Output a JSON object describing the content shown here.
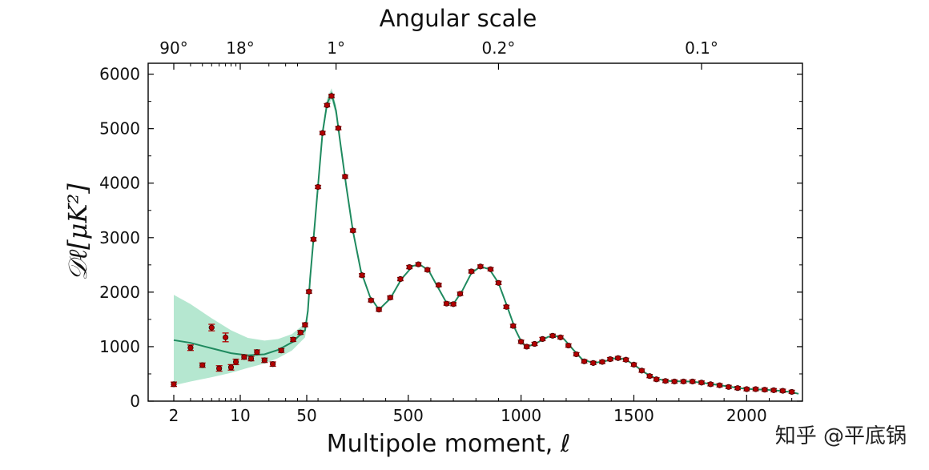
{
  "chart_data": {
    "type": "scatter",
    "title": "Angular scale",
    "xlabel": "Multipole moment, ℓ",
    "ylabel": "𝒟ℓ[μK²]",
    "ylim": [
      0,
      6200
    ],
    "x_scale": "log-linear hybrid (log for ℓ < 50, linear for ℓ ≥ 50)",
    "x_tick_labels": [
      2,
      10,
      50,
      500,
      1000,
      1500,
      2000
    ],
    "y_tick_labels": [
      0,
      1000,
      2000,
      3000,
      4000,
      5000,
      6000
    ],
    "top_axis_labels": [
      {
        "label": "90°",
        "ell": 2
      },
      {
        "label": "18°",
        "ell": 10
      },
      {
        "label": "1°",
        "ell": 180
      },
      {
        "label": "0.2°",
        "ell": 900
      },
      {
        "label": "0.1°",
        "ell": 1800
      }
    ],
    "series": [
      {
        "kind": "data-points",
        "color": "#b30000",
        "points": [
          [
            2,
            310,
            40
          ],
          [
            3,
            980,
            50
          ],
          [
            4,
            660,
            40
          ],
          [
            5,
            1350,
            60
          ],
          [
            6,
            600,
            50
          ],
          [
            7,
            1170,
            80
          ],
          [
            8,
            620,
            50
          ],
          [
            9,
            720,
            50
          ],
          [
            11,
            810,
            40
          ],
          [
            13,
            780,
            40
          ],
          [
            15,
            900,
            40
          ],
          [
            18,
            750,
            40
          ],
          [
            22,
            680,
            40
          ],
          [
            27,
            930,
            35
          ],
          [
            36,
            1130,
            35
          ],
          [
            43,
            1260,
            35
          ],
          [
            48,
            1400,
            35
          ],
          [
            60,
            2010,
            30
          ],
          [
            80,
            2970,
            30
          ],
          [
            100,
            3930,
            30
          ],
          [
            120,
            4920,
            30
          ],
          [
            140,
            5430,
            30
          ],
          [
            160,
            5600,
            30
          ],
          [
            190,
            5010,
            30
          ],
          [
            220,
            4120,
            30
          ],
          [
            255,
            3130,
            30
          ],
          [
            295,
            2310,
            30
          ],
          [
            335,
            1850,
            30
          ],
          [
            370,
            1680,
            30
          ],
          [
            420,
            1900,
            30
          ],
          [
            465,
            2240,
            30
          ],
          [
            505,
            2460,
            30
          ],
          [
            545,
            2510,
            30
          ],
          [
            585,
            2410,
            30
          ],
          [
            635,
            2130,
            30
          ],
          [
            670,
            1790,
            30
          ],
          [
            700,
            1780,
            30
          ],
          [
            730,
            1970,
            30
          ],
          [
            780,
            2380,
            30
          ],
          [
            820,
            2470,
            30
          ],
          [
            865,
            2420,
            30
          ],
          [
            900,
            2170,
            30
          ],
          [
            935,
            1730,
            30
          ],
          [
            965,
            1380,
            30
          ],
          [
            1000,
            1090,
            30
          ],
          [
            1025,
            1000,
            30
          ],
          [
            1060,
            1050,
            30
          ],
          [
            1095,
            1140,
            30
          ],
          [
            1140,
            1200,
            30
          ],
          [
            1175,
            1170,
            30
          ],
          [
            1210,
            1020,
            30
          ],
          [
            1245,
            860,
            30
          ],
          [
            1280,
            730,
            30
          ],
          [
            1320,
            700,
            30
          ],
          [
            1360,
            720,
            30
          ],
          [
            1395,
            770,
            30
          ],
          [
            1430,
            790,
            30
          ],
          [
            1465,
            760,
            30
          ],
          [
            1500,
            670,
            30
          ],
          [
            1535,
            560,
            30
          ],
          [
            1570,
            460,
            30
          ],
          [
            1600,
            400,
            30
          ],
          [
            1640,
            370,
            30
          ],
          [
            1680,
            360,
            30
          ],
          [
            1720,
            360,
            30
          ],
          [
            1760,
            360,
            30
          ],
          [
            1800,
            340,
            30
          ],
          [
            1840,
            310,
            30
          ],
          [
            1880,
            290,
            30
          ],
          [
            1920,
            260,
            30
          ],
          [
            1960,
            240,
            30
          ],
          [
            2000,
            220,
            30
          ],
          [
            2040,
            220,
            30
          ],
          [
            2080,
            210,
            30
          ],
          [
            2120,
            200,
            30
          ],
          [
            2160,
            190,
            30
          ],
          [
            2200,
            170,
            30
          ]
        ]
      },
      {
        "kind": "model-curve",
        "color": "#1f8a5f",
        "points": [
          [
            2,
            1120
          ],
          [
            3,
            1070
          ],
          [
            5,
            970
          ],
          [
            8,
            880
          ],
          [
            12,
            840
          ],
          [
            18,
            860
          ],
          [
            25,
            940
          ],
          [
            35,
            1080
          ],
          [
            48,
            1300
          ],
          [
            55,
            1650
          ],
          [
            65,
            2250
          ],
          [
            80,
            2980
          ],
          [
            100,
            3950
          ],
          [
            120,
            4920
          ],
          [
            140,
            5460
          ],
          [
            160,
            5640
          ],
          [
            180,
            5330
          ],
          [
            200,
            4700
          ],
          [
            225,
            3950
          ],
          [
            255,
            3120
          ],
          [
            290,
            2390
          ],
          [
            330,
            1920
          ],
          [
            370,
            1680
          ],
          [
            420,
            1880
          ],
          [
            470,
            2240
          ],
          [
            520,
            2480
          ],
          [
            550,
            2510
          ],
          [
            590,
            2400
          ],
          [
            630,
            2100
          ],
          [
            670,
            1800
          ],
          [
            700,
            1780
          ],
          [
            740,
            2030
          ],
          [
            780,
            2350
          ],
          [
            820,
            2470
          ],
          [
            860,
            2420
          ],
          [
            900,
            2170
          ],
          [
            940,
            1720
          ],
          [
            975,
            1310
          ],
          [
            1005,
            1060
          ],
          [
            1030,
            1000
          ],
          [
            1070,
            1070
          ],
          [
            1120,
            1180
          ],
          [
            1150,
            1200
          ],
          [
            1190,
            1140
          ],
          [
            1230,
            950
          ],
          [
            1270,
            770
          ],
          [
            1320,
            700
          ],
          [
            1370,
            730
          ],
          [
            1420,
            790
          ],
          [
            1460,
            770
          ],
          [
            1500,
            670
          ],
          [
            1550,
            520
          ],
          [
            1600,
            410
          ],
          [
            1650,
            370
          ],
          [
            1700,
            365
          ],
          [
            1750,
            360
          ],
          [
            1800,
            340
          ],
          [
            1850,
            310
          ],
          [
            1900,
            280
          ],
          [
            1950,
            250
          ],
          [
            2000,
            225
          ],
          [
            2050,
            215
          ],
          [
            2100,
            205
          ],
          [
            2150,
            190
          ],
          [
            2200,
            165
          ],
          [
            2230,
            135
          ]
        ]
      },
      {
        "kind": "cosmic-variance-band",
        "color": "#a8e3c8",
        "points": [
          [
            2,
            290,
            1950
          ],
          [
            3,
            360,
            1780
          ],
          [
            5,
            440,
            1520
          ],
          [
            8,
            520,
            1300
          ],
          [
            12,
            610,
            1160
          ],
          [
            18,
            690,
            1110
          ],
          [
            25,
            790,
            1140
          ],
          [
            35,
            930,
            1230
          ],
          [
            48,
            1170,
            1430
          ],
          [
            55,
            1550,
            1750
          ],
          [
            65,
            2150,
            2350
          ],
          [
            80,
            2880,
            3080
          ],
          [
            100,
            3850,
            4050
          ],
          [
            120,
            4820,
            5020
          ],
          [
            140,
            5360,
            5560
          ],
          [
            160,
            5540,
            5740
          ],
          [
            180,
            5230,
            5430
          ]
        ]
      }
    ],
    "grid": false,
    "legend": "none"
  },
  "watermark": "知乎 @平底锅"
}
